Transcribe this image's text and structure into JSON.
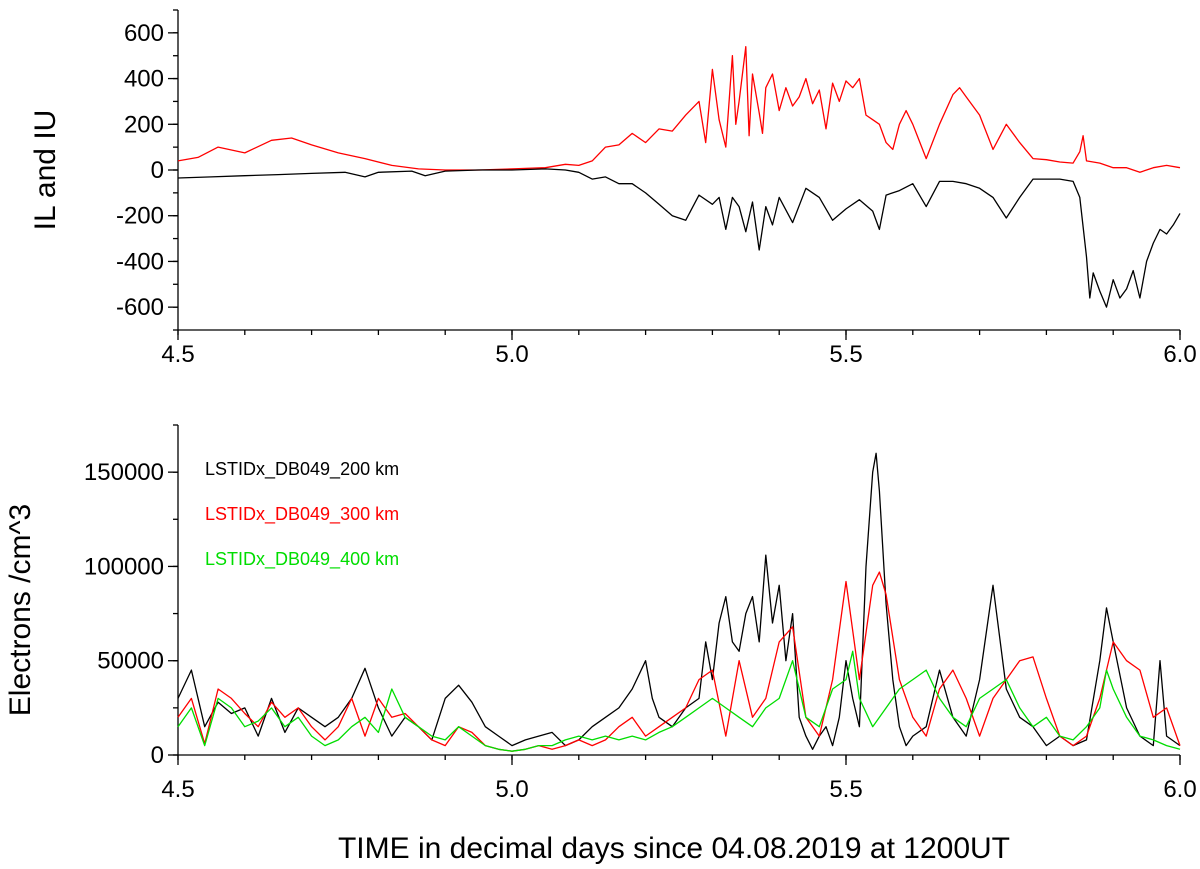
{
  "chart_data": [
    {
      "type": "line",
      "ylabel": "IL and IU",
      "xlim": [
        4.5,
        6.0
      ],
      "ylim": [
        -700,
        700
      ],
      "x_ticks": [
        "4.5",
        "5.0",
        "5.5",
        "6.0"
      ],
      "y_ticks": [
        "600",
        "400",
        "200",
        "0",
        "-200",
        "-400",
        "-600"
      ],
      "grid": false,
      "series": [
        {
          "color": "#ff0000",
          "x": [
            4.5,
            4.53,
            4.56,
            4.6,
            4.64,
            4.67,
            4.7,
            4.74,
            4.78,
            4.82,
            4.86,
            4.9,
            4.95,
            5.0,
            5.05,
            5.08,
            5.1,
            5.12,
            5.14,
            5.16,
            5.18,
            5.2,
            5.22,
            5.24,
            5.26,
            5.28,
            5.29,
            5.3,
            5.31,
            5.32,
            5.33,
            5.335,
            5.34,
            5.35,
            5.355,
            5.36,
            5.37,
            5.375,
            5.38,
            5.39,
            5.4,
            5.41,
            5.42,
            5.43,
            5.44,
            5.45,
            5.46,
            5.47,
            5.48,
            5.49,
            5.5,
            5.51,
            5.52,
            5.53,
            5.54,
            5.55,
            5.56,
            5.57,
            5.58,
            5.59,
            5.6,
            5.62,
            5.64,
            5.66,
            5.67,
            5.68,
            5.7,
            5.72,
            5.74,
            5.76,
            5.78,
            5.8,
            5.82,
            5.84,
            5.85,
            5.855,
            5.86,
            5.88,
            5.9,
            5.92,
            5.94,
            5.96,
            5.98,
            6.0
          ],
          "y": [
            40,
            55,
            100,
            75,
            130,
            140,
            110,
            75,
            50,
            20,
            5,
            0,
            0,
            5,
            10,
            25,
            20,
            40,
            100,
            110,
            160,
            120,
            180,
            170,
            240,
            300,
            120,
            440,
            220,
            100,
            500,
            200,
            300,
            540,
            150,
            420,
            250,
            160,
            360,
            420,
            260,
            360,
            280,
            320,
            400,
            290,
            350,
            180,
            380,
            300,
            390,
            360,
            400,
            240,
            220,
            200,
            120,
            90,
            200,
            260,
            200,
            50,
            200,
            330,
            360,
            320,
            240,
            90,
            200,
            120,
            50,
            45,
            35,
            30,
            80,
            150,
            40,
            30,
            10,
            10,
            -10,
            10,
            20,
            10
          ]
        },
        {
          "color": "#000000",
          "x": [
            4.5,
            4.55,
            4.6,
            4.65,
            4.7,
            4.75,
            4.78,
            4.8,
            4.85,
            4.87,
            4.9,
            4.95,
            5.0,
            5.05,
            5.08,
            5.1,
            5.12,
            5.14,
            5.16,
            5.18,
            5.2,
            5.22,
            5.24,
            5.26,
            5.28,
            5.3,
            5.31,
            5.32,
            5.33,
            5.34,
            5.35,
            5.36,
            5.37,
            5.38,
            5.39,
            5.4,
            5.42,
            5.44,
            5.46,
            5.48,
            5.5,
            5.52,
            5.54,
            5.55,
            5.56,
            5.58,
            5.6,
            5.62,
            5.64,
            5.66,
            5.68,
            5.7,
            5.72,
            5.74,
            5.76,
            5.78,
            5.8,
            5.82,
            5.84,
            5.85,
            5.86,
            5.865,
            5.87,
            5.88,
            5.89,
            5.9,
            5.91,
            5.92,
            5.93,
            5.94,
            5.95,
            5.96,
            5.97,
            5.98,
            5.99,
            6.0
          ],
          "y": [
            -35,
            -30,
            -25,
            -20,
            -15,
            -10,
            -30,
            -10,
            -5,
            -25,
            -5,
            0,
            0,
            5,
            0,
            -10,
            -40,
            -30,
            -60,
            -60,
            -100,
            -150,
            -200,
            -220,
            -110,
            -150,
            -120,
            -260,
            -120,
            -160,
            -270,
            -140,
            -350,
            -160,
            -240,
            -120,
            -230,
            -80,
            -120,
            -220,
            -170,
            -130,
            -180,
            -260,
            -110,
            -90,
            -60,
            -160,
            -50,
            -50,
            -60,
            -80,
            -120,
            -210,
            -120,
            -40,
            -40,
            -40,
            -50,
            -120,
            -380,
            -560,
            -450,
            -530,
            -600,
            -480,
            -560,
            -520,
            -440,
            -560,
            -400,
            -320,
            -260,
            -280,
            -240,
            -190
          ]
        }
      ]
    },
    {
      "type": "line",
      "ylabel": "Electrons /cm^3",
      "xlabel": "TIME in decimal days since 04.08.2019 at 1200UT",
      "xlim": [
        4.5,
        6.0
      ],
      "ylim": [
        0,
        175000
      ],
      "x_ticks": [
        "4.5",
        "5.0",
        "5.5",
        "6.0"
      ],
      "y_ticks": [
        "150000",
        "100000",
        "50000",
        "0"
      ],
      "grid": false,
      "legend": "top-left",
      "series": [
        {
          "name": "LSTIDx_DB049_200 km",
          "color": "#000000",
          "x": [
            4.5,
            4.52,
            4.54,
            4.56,
            4.58,
            4.6,
            4.62,
            4.64,
            4.66,
            4.68,
            4.7,
            4.72,
            4.74,
            4.76,
            4.78,
            4.8,
            4.82,
            4.84,
            4.86,
            4.88,
            4.9,
            4.92,
            4.94,
            4.96,
            4.98,
            5.0,
            5.02,
            5.04,
            5.06,
            5.08,
            5.1,
            5.12,
            5.14,
            5.16,
            5.18,
            5.2,
            5.21,
            5.22,
            5.24,
            5.26,
            5.28,
            5.29,
            5.3,
            5.31,
            5.32,
            5.33,
            5.34,
            5.35,
            5.36,
            5.37,
            5.38,
            5.39,
            5.4,
            5.41,
            5.42,
            5.43,
            5.44,
            5.45,
            5.46,
            5.47,
            5.48,
            5.49,
            5.5,
            5.51,
            5.52,
            5.53,
            5.54,
            5.545,
            5.55,
            5.56,
            5.57,
            5.58,
            5.59,
            5.6,
            5.62,
            5.64,
            5.66,
            5.68,
            5.7,
            5.72,
            5.74,
            5.76,
            5.78,
            5.8,
            5.82,
            5.84,
            5.86,
            5.88,
            5.89,
            5.9,
            5.92,
            5.94,
            5.96,
            5.97,
            5.98,
            6.0
          ],
          "y": [
            30000,
            45000,
            15000,
            28000,
            22000,
            25000,
            10000,
            30000,
            12000,
            25000,
            20000,
            15000,
            20000,
            30000,
            46000,
            25000,
            10000,
            20000,
            15000,
            8000,
            30000,
            37000,
            28000,
            15000,
            10000,
            5000,
            8000,
            10000,
            12000,
            5000,
            8000,
            15000,
            20000,
            25000,
            35000,
            50000,
            30000,
            20000,
            15000,
            25000,
            30000,
            60000,
            40000,
            70000,
            84000,
            60000,
            55000,
            75000,
            84000,
            60000,
            106000,
            70000,
            90000,
            50000,
            75000,
            20000,
            10000,
            3000,
            10000,
            15000,
            5000,
            20000,
            50000,
            30000,
            15000,
            100000,
            150000,
            160000,
            140000,
            80000,
            40000,
            15000,
            5000,
            10000,
            15000,
            45000,
            20000,
            10000,
            40000,
            90000,
            35000,
            20000,
            15000,
            5000,
            10000,
            5000,
            8000,
            50000,
            78000,
            60000,
            25000,
            10000,
            5000,
            50000,
            10000,
            5000
          ]
        },
        {
          "name": "LSTIDx_DB049_300 km",
          "color": "#ff0000",
          "x": [
            4.5,
            4.52,
            4.54,
            4.56,
            4.58,
            4.6,
            4.62,
            4.64,
            4.66,
            4.68,
            4.7,
            4.72,
            4.74,
            4.76,
            4.78,
            4.8,
            4.82,
            4.84,
            4.86,
            4.88,
            4.9,
            4.92,
            4.94,
            4.96,
            4.98,
            5.0,
            5.02,
            5.04,
            5.06,
            5.08,
            5.1,
            5.12,
            5.14,
            5.16,
            5.18,
            5.2,
            5.22,
            5.24,
            5.26,
            5.28,
            5.3,
            5.32,
            5.34,
            5.36,
            5.38,
            5.4,
            5.42,
            5.44,
            5.46,
            5.48,
            5.5,
            5.52,
            5.54,
            5.55,
            5.56,
            5.58,
            5.6,
            5.62,
            5.64,
            5.66,
            5.68,
            5.7,
            5.72,
            5.74,
            5.76,
            5.78,
            5.8,
            5.82,
            5.84,
            5.86,
            5.88,
            5.9,
            5.92,
            5.94,
            5.96,
            5.98,
            6.0
          ],
          "y": [
            20000,
            30000,
            6000,
            35000,
            30000,
            22000,
            15000,
            28000,
            20000,
            25000,
            15000,
            8000,
            15000,
            30000,
            10000,
            30000,
            20000,
            22000,
            15000,
            8000,
            5000,
            15000,
            12000,
            5000,
            3000,
            2000,
            3000,
            5000,
            3000,
            5000,
            8000,
            5000,
            8000,
            15000,
            20000,
            10000,
            15000,
            20000,
            25000,
            40000,
            45000,
            10000,
            50000,
            20000,
            30000,
            60000,
            68000,
            20000,
            10000,
            40000,
            92000,
            40000,
            90000,
            97000,
            85000,
            40000,
            20000,
            10000,
            35000,
            45000,
            30000,
            10000,
            30000,
            40000,
            50000,
            52000,
            30000,
            10000,
            5000,
            10000,
            30000,
            60000,
            50000,
            45000,
            20000,
            25000,
            5000
          ]
        },
        {
          "name": "LSTIDx_DB049_400 km",
          "color": "#00dd00",
          "x": [
            4.5,
            4.52,
            4.54,
            4.56,
            4.58,
            4.6,
            4.62,
            4.64,
            4.66,
            4.68,
            4.7,
            4.72,
            4.74,
            4.76,
            4.78,
            4.8,
            4.82,
            4.84,
            4.86,
            4.88,
            4.9,
            4.92,
            4.94,
            4.96,
            4.98,
            5.0,
            5.02,
            5.04,
            5.06,
            5.08,
            5.1,
            5.12,
            5.14,
            5.16,
            5.18,
            5.2,
            5.22,
            5.24,
            5.26,
            5.28,
            5.3,
            5.32,
            5.34,
            5.36,
            5.38,
            5.4,
            5.42,
            5.44,
            5.46,
            5.48,
            5.5,
            5.51,
            5.52,
            5.54,
            5.56,
            5.58,
            5.6,
            5.62,
            5.64,
            5.66,
            5.68,
            5.7,
            5.72,
            5.74,
            5.76,
            5.78,
            5.8,
            5.82,
            5.84,
            5.86,
            5.88,
            5.89,
            5.9,
            5.92,
            5.94,
            5.96,
            5.98,
            6.0
          ],
          "y": [
            15000,
            25000,
            5000,
            30000,
            25000,
            15000,
            18000,
            25000,
            15000,
            20000,
            10000,
            5000,
            8000,
            15000,
            20000,
            12000,
            35000,
            20000,
            15000,
            10000,
            8000,
            15000,
            10000,
            5000,
            3000,
            2000,
            3000,
            5000,
            5000,
            8000,
            10000,
            8000,
            10000,
            8000,
            10000,
            8000,
            12000,
            15000,
            20000,
            25000,
            30000,
            25000,
            20000,
            15000,
            25000,
            30000,
            50000,
            20000,
            15000,
            35000,
            40000,
            55000,
            30000,
            15000,
            25000,
            35000,
            40000,
            45000,
            30000,
            20000,
            15000,
            30000,
            35000,
            40000,
            25000,
            15000,
            20000,
            10000,
            8000,
            15000,
            25000,
            45000,
            35000,
            20000,
            10000,
            8000,
            5000,
            3000
          ]
        }
      ]
    }
  ]
}
